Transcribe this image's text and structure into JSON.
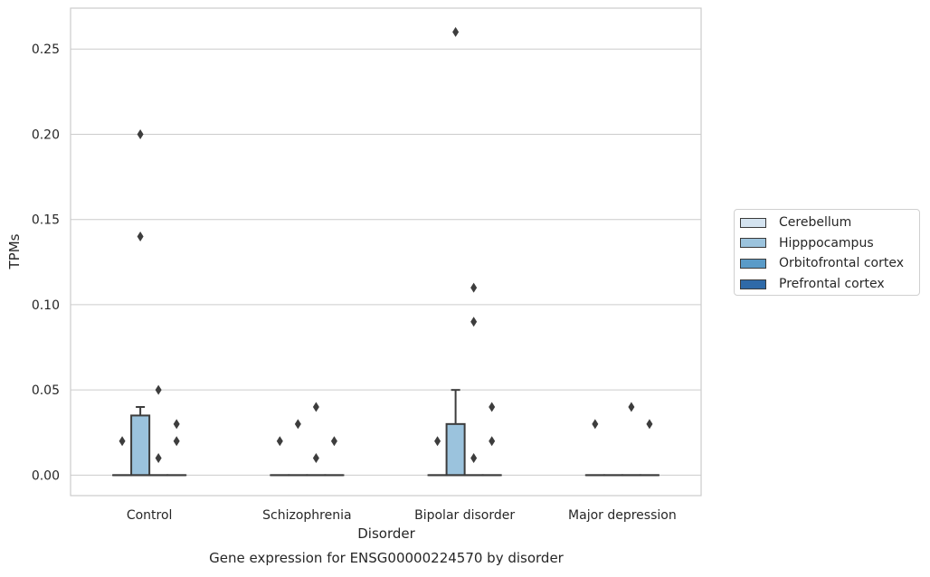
{
  "chart_data": {
    "type": "box",
    "title": "Gene expression for ENSG00000224570 by disorder",
    "xlabel": "Disorder",
    "ylabel": "TPMs",
    "categories": [
      "Control",
      "Schizophrenia",
      "Bipolar disorder",
      "Major depression"
    ],
    "ylim": [
      -0.012,
      0.274
    ],
    "yticks": [
      0.0,
      0.05,
      0.1,
      0.15,
      0.2,
      0.25
    ],
    "ytick_labels": [
      "0.00",
      "0.05",
      "0.10",
      "0.15",
      "0.20",
      "0.25"
    ],
    "grid": "horizontal",
    "legend_position": "right",
    "series": [
      {
        "name": "Cerebellum",
        "color": "#d4e3f0",
        "boxes": [
          {
            "category": "Control",
            "q1": 0.0,
            "median": 0.0,
            "q3": 0.0,
            "whisker_low": 0.0,
            "whisker_high": 0.0,
            "outliers": [
              0.02
            ]
          },
          {
            "category": "Schizophrenia",
            "q1": 0.0,
            "median": 0.0,
            "q3": 0.0,
            "whisker_low": 0.0,
            "whisker_high": 0.0,
            "outliers": [
              0.02
            ]
          },
          {
            "category": "Bipolar disorder",
            "q1": 0.0,
            "median": 0.0,
            "q3": 0.0,
            "whisker_low": 0.0,
            "whisker_high": 0.0,
            "outliers": [
              0.02
            ]
          },
          {
            "category": "Major depression",
            "q1": 0.0,
            "median": 0.0,
            "q3": 0.0,
            "whisker_low": 0.0,
            "whisker_high": 0.0,
            "outliers": [
              0.03
            ]
          }
        ]
      },
      {
        "name": "Hipppocampus",
        "color": "#9bc3dd",
        "boxes": [
          {
            "category": "Control",
            "q1": 0.0,
            "median": 0.0,
            "q3": 0.035,
            "whisker_low": 0.0,
            "whisker_high": 0.04,
            "outliers": [
              0.2,
              0.14
            ]
          },
          {
            "category": "Schizophrenia",
            "q1": 0.0,
            "median": 0.0,
            "q3": 0.0,
            "whisker_low": 0.0,
            "whisker_high": 0.0,
            "outliers": [
              0.03
            ]
          },
          {
            "category": "Bipolar disorder",
            "q1": 0.0,
            "median": 0.0,
            "q3": 0.03,
            "whisker_low": 0.0,
            "whisker_high": 0.05,
            "outliers": [
              0.26
            ]
          },
          {
            "category": "Major depression",
            "q1": 0.0,
            "median": 0.0,
            "q3": 0.0,
            "whisker_low": 0.0,
            "whisker_high": 0.0,
            "outliers": []
          }
        ]
      },
      {
        "name": "Orbitofrontal cortex",
        "color": "#5a9bc8",
        "boxes": [
          {
            "category": "Control",
            "q1": 0.0,
            "median": 0.0,
            "q3": 0.0,
            "whisker_low": 0.0,
            "whisker_high": 0.0,
            "outliers": [
              0.05,
              0.01
            ]
          },
          {
            "category": "Schizophrenia",
            "q1": 0.0,
            "median": 0.0,
            "q3": 0.0,
            "whisker_low": 0.0,
            "whisker_high": 0.0,
            "outliers": [
              0.04,
              0.01
            ]
          },
          {
            "category": "Bipolar disorder",
            "q1": 0.0,
            "median": 0.0,
            "q3": 0.0,
            "whisker_low": 0.0,
            "whisker_high": 0.0,
            "outliers": [
              0.11,
              0.09,
              0.01
            ]
          },
          {
            "category": "Major depression",
            "q1": 0.0,
            "median": 0.0,
            "q3": 0.0,
            "whisker_low": 0.0,
            "whisker_high": 0.0,
            "outliers": [
              0.04
            ]
          }
        ]
      },
      {
        "name": "Prefrontal cortex",
        "color": "#2f6aa8",
        "boxes": [
          {
            "category": "Control",
            "q1": 0.0,
            "median": 0.0,
            "q3": 0.0,
            "whisker_low": 0.0,
            "whisker_high": 0.0,
            "outliers": [
              0.03,
              0.02
            ]
          },
          {
            "category": "Schizophrenia",
            "q1": 0.0,
            "median": 0.0,
            "q3": 0.0,
            "whisker_low": 0.0,
            "whisker_high": 0.0,
            "outliers": [
              0.02
            ]
          },
          {
            "category": "Bipolar disorder",
            "q1": 0.0,
            "median": 0.0,
            "q3": 0.0,
            "whisker_low": 0.0,
            "whisker_high": 0.0,
            "outliers": [
              0.04,
              0.02
            ]
          },
          {
            "category": "Major depression",
            "q1": 0.0,
            "median": 0.0,
            "q3": 0.0,
            "whisker_low": 0.0,
            "whisker_high": 0.0,
            "outliers": [
              0.03
            ]
          }
        ]
      }
    ]
  }
}
